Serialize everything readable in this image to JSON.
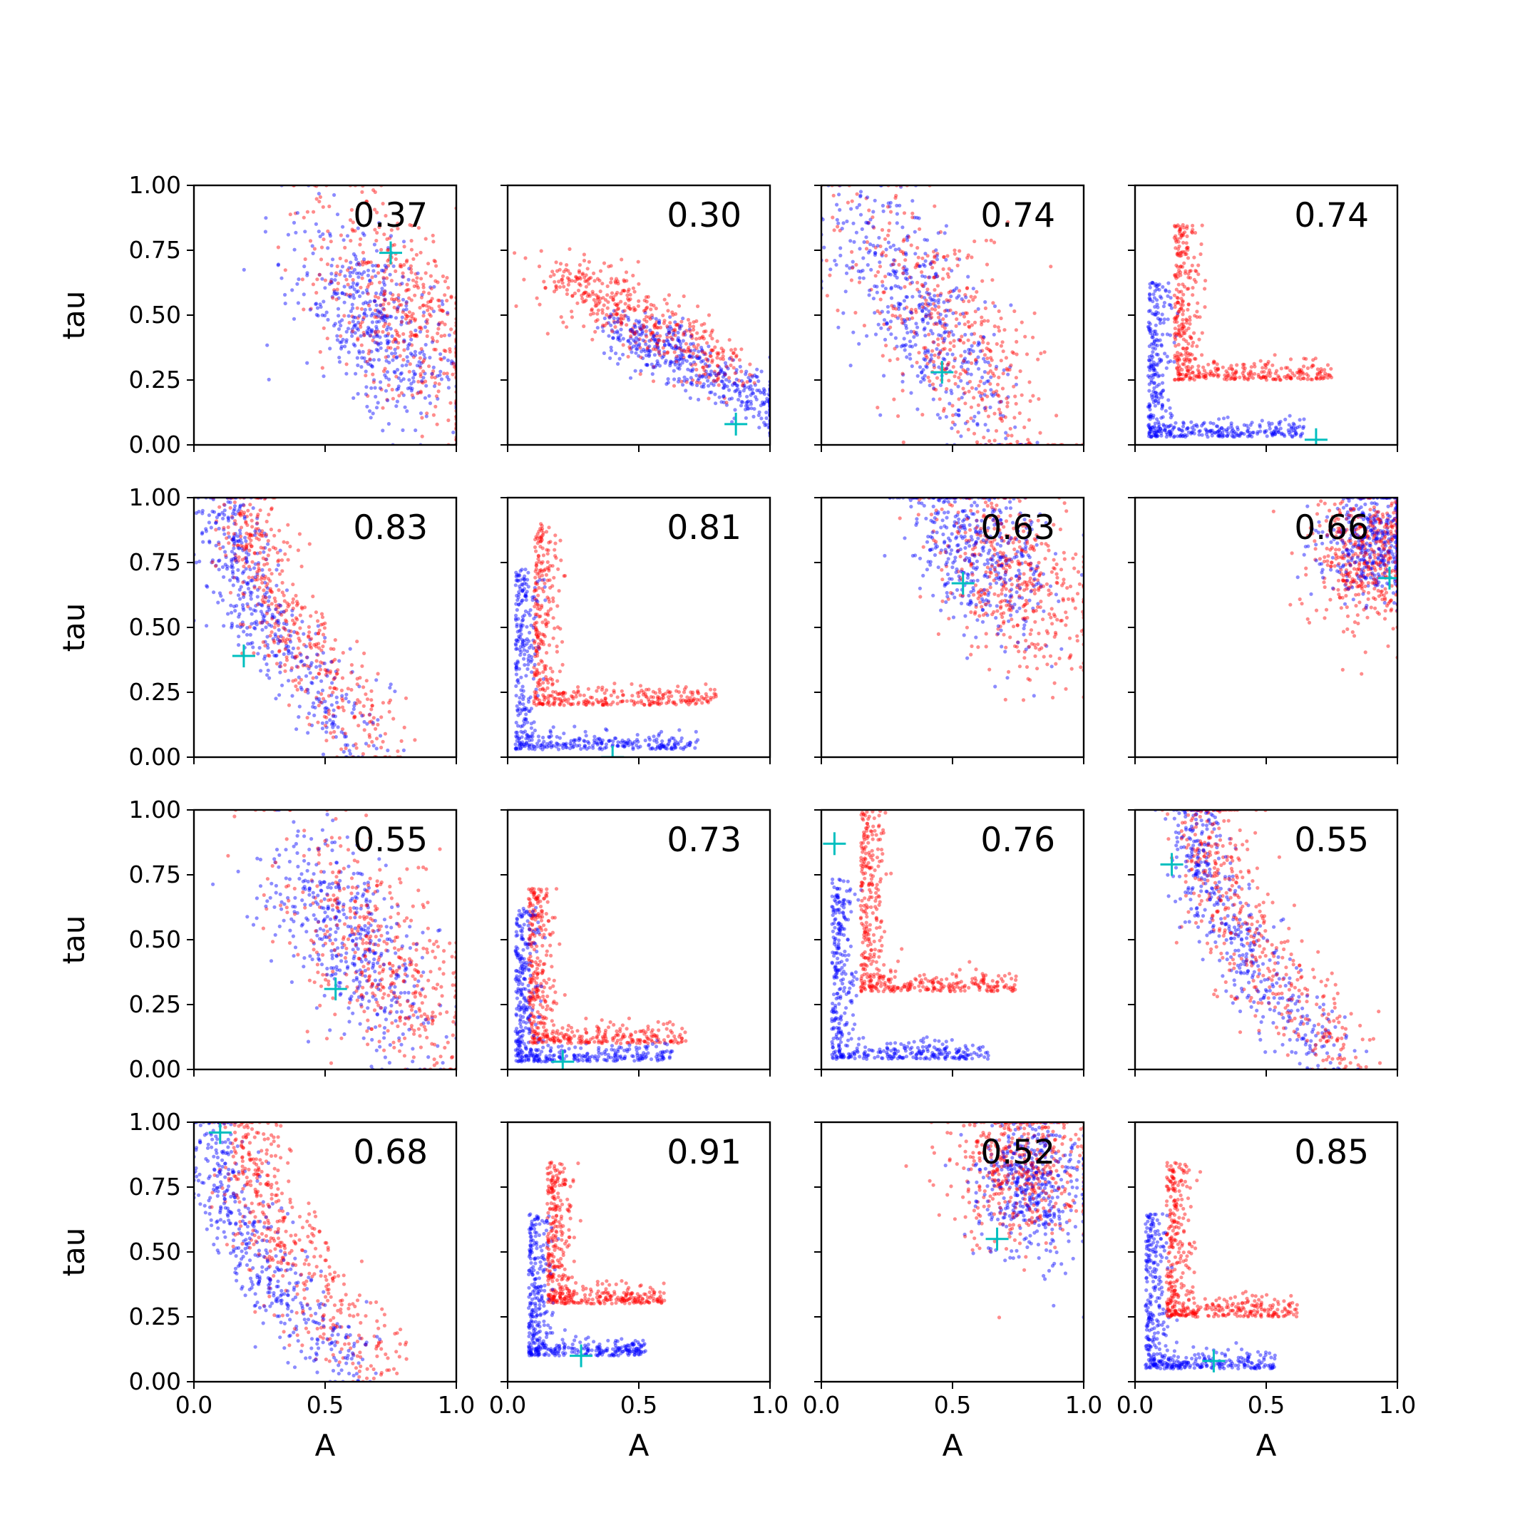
{
  "figure": {
    "xlabel": "A",
    "ylabel": "tau",
    "x_ticks": [
      "0.0",
      "0.5",
      "1.0"
    ],
    "y_ticks": [
      "0.00",
      "0.25",
      "0.50",
      "0.75",
      "1.00"
    ],
    "colors": {
      "series_a": "#0000ff",
      "series_b": "#ff0000",
      "truth_marker": "#00bfbf"
    }
  },
  "chart_data": [
    {
      "type": "scatter",
      "label": "0.37",
      "truth": [
        0.75,
        0.74
      ],
      "dist": {
        "shape": "diag",
        "cx": 0.68,
        "cy": 0.47,
        "spreadA": 0.18,
        "spreadB": 0.28,
        "red": {
          "cx": 0.78,
          "cy": 0.52
        }
      }
    },
    {
      "type": "scatter",
      "label": "0.30",
      "truth": [
        0.87,
        0.08
      ],
      "dist": {
        "shape": "curveL",
        "cx": 0.75,
        "cy": 0.12,
        "spreadA": 0.25,
        "spreadB": 0.1,
        "red": {
          "cx": 0.55,
          "cy": 0.3
        }
      }
    },
    {
      "type": "scatter",
      "label": "0.74",
      "truth": [
        0.46,
        0.28
      ],
      "dist": {
        "shape": "diag",
        "cx": 0.38,
        "cy": 0.5,
        "spreadA": 0.22,
        "spreadB": 0.25,
        "red": {
          "cx": 0.48,
          "cy": 0.45
        }
      }
    },
    {
      "type": "scatter",
      "label": "0.74",
      "truth": [
        0.69,
        0.02
      ],
      "dist": {
        "shape": "L",
        "cx": 0.05,
        "cy": 0.03,
        "spreadA": 0.6,
        "spreadB": 0.6,
        "red": {
          "cx": 0.15,
          "cy": 0.25
        }
      }
    },
    {
      "type": "scatter",
      "label": "0.83",
      "truth": [
        0.19,
        0.39
      ],
      "dist": {
        "shape": "curveV",
        "cx": 0.18,
        "cy": 0.6,
        "spreadA": 0.12,
        "spreadB": 0.35,
        "red": {
          "cx": 0.25,
          "cy": 0.45
        }
      }
    },
    {
      "type": "scatter",
      "label": "0.81",
      "truth": [
        0.4,
        0.0
      ],
      "dist": {
        "shape": "L",
        "cx": 0.03,
        "cy": 0.03,
        "spreadA": 0.7,
        "spreadB": 0.7,
        "red": {
          "cx": 0.1,
          "cy": 0.2
        }
      }
    },
    {
      "type": "scatter",
      "label": "0.63",
      "truth": [
        0.54,
        0.67
      ],
      "dist": {
        "shape": "diag",
        "cx": 0.6,
        "cy": 0.8,
        "spreadA": 0.15,
        "spreadB": 0.18,
        "red": {
          "cx": 0.72,
          "cy": 0.7
        }
      }
    },
    {
      "type": "scatter",
      "label": "0.66",
      "truth": [
        0.97,
        0.69
      ],
      "dist": {
        "shape": "diag",
        "cx": 0.92,
        "cy": 0.85,
        "spreadA": 0.08,
        "spreadB": 0.15,
        "red": {
          "cx": 0.88,
          "cy": 0.78
        }
      }
    },
    {
      "type": "scatter",
      "label": "0.55",
      "truth": [
        0.54,
        0.31
      ],
      "dist": {
        "shape": "diag",
        "cx": 0.6,
        "cy": 0.48,
        "spreadA": 0.2,
        "spreadB": 0.22,
        "red": {
          "cx": 0.7,
          "cy": 0.45
        }
      }
    },
    {
      "type": "scatter",
      "label": "0.73",
      "truth": [
        0.21,
        0.03
      ],
      "dist": {
        "shape": "L",
        "cx": 0.03,
        "cy": 0.03,
        "spreadA": 0.6,
        "spreadB": 0.6,
        "red": {
          "cx": 0.08,
          "cy": 0.1
        }
      }
    },
    {
      "type": "scatter",
      "label": "0.76",
      "truth": [
        0.05,
        0.87
      ],
      "dist": {
        "shape": "L",
        "cx": 0.04,
        "cy": 0.04,
        "spreadA": 0.6,
        "spreadB": 0.7,
        "red": {
          "cx": 0.15,
          "cy": 0.3
        }
      }
    },
    {
      "type": "scatter",
      "label": "0.55",
      "truth": [
        0.14,
        0.79
      ],
      "dist": {
        "shape": "curveV",
        "cx": 0.28,
        "cy": 0.45,
        "spreadA": 0.22,
        "spreadB": 0.35,
        "red": {
          "cx": 0.32,
          "cy": 0.5
        }
      }
    },
    {
      "type": "scatter",
      "label": "0.68",
      "truth": [
        0.1,
        0.96
      ],
      "dist": {
        "shape": "curveV",
        "cx": 0.12,
        "cy": 0.45,
        "spreadA": 0.2,
        "spreadB": 0.45,
        "red": {
          "cx": 0.25,
          "cy": 0.45
        }
      }
    },
    {
      "type": "scatter",
      "label": "0.91",
      "truth": [
        0.28,
        0.1
      ],
      "dist": {
        "shape": "L",
        "cx": 0.08,
        "cy": 0.1,
        "spreadA": 0.45,
        "spreadB": 0.55,
        "red": {
          "cx": 0.15,
          "cy": 0.3
        }
      }
    },
    {
      "type": "scatter",
      "label": "0.52",
      "truth": [
        0.67,
        0.55
      ],
      "dist": {
        "shape": "diag",
        "cx": 0.8,
        "cy": 0.75,
        "spreadA": 0.1,
        "spreadB": 0.18,
        "red": {
          "cx": 0.75,
          "cy": 0.82
        }
      }
    },
    {
      "type": "scatter",
      "label": "0.85",
      "truth": [
        0.3,
        0.08
      ],
      "dist": {
        "shape": "L",
        "cx": 0.04,
        "cy": 0.05,
        "spreadA": 0.5,
        "spreadB": 0.6,
        "red": {
          "cx": 0.12,
          "cy": 0.25
        }
      }
    }
  ]
}
